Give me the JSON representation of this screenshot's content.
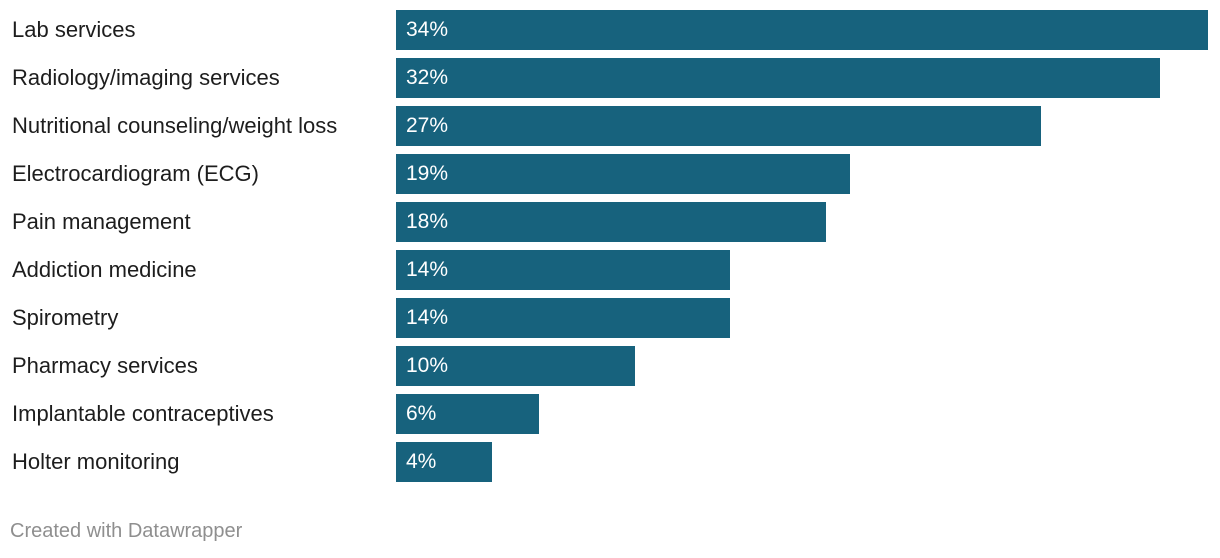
{
  "chart_data": {
    "type": "bar",
    "orientation": "horizontal",
    "categories": [
      "Lab services",
      "Radiology/imaging services",
      "Nutritional counseling/weight loss",
      "Electrocardiogram (ECG)",
      "Pain management",
      "Addiction medicine",
      "Spirometry",
      "Pharmacy services",
      "Implantable contraceptives",
      "Holter monitoring"
    ],
    "values": [
      34,
      32,
      27,
      19,
      18,
      14,
      14,
      10,
      6,
      4
    ],
    "value_labels": [
      "34%",
      "32%",
      "27%",
      "19%",
      "18%",
      "14%",
      "14%",
      "10%",
      "6%",
      "4%"
    ],
    "unit": "%",
    "xlim": [
      0,
      34
    ],
    "bar_color": "#17627d",
    "title": "",
    "xlabel": "",
    "ylabel": "",
    "grid": false
  },
  "footer": {
    "credit": "Created with Datawrapper"
  }
}
